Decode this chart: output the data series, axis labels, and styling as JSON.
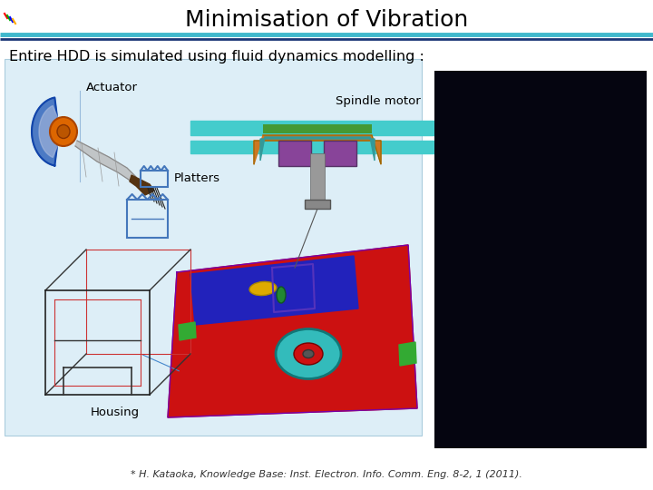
{
  "title": "Minimisation of Vibration",
  "subtitle": "Entire HDD is simulated using fluid dynamics modelling :",
  "label_actuator": "Actuator",
  "label_spindle": "Spindle motor",
  "label_platters": "Platters",
  "label_housing": "Housing",
  "footnote": "* H. Kataoka, Knowledge Base: Inst. Electron. Info. Comm. Eng. 8-2, 1 (2011).",
  "bg_color": "#ffffff",
  "title_color": "#000000",
  "title_fontsize": 18,
  "subtitle_fontsize": 11.5,
  "label_fontsize": 9.5,
  "footnote_fontsize": 8
}
